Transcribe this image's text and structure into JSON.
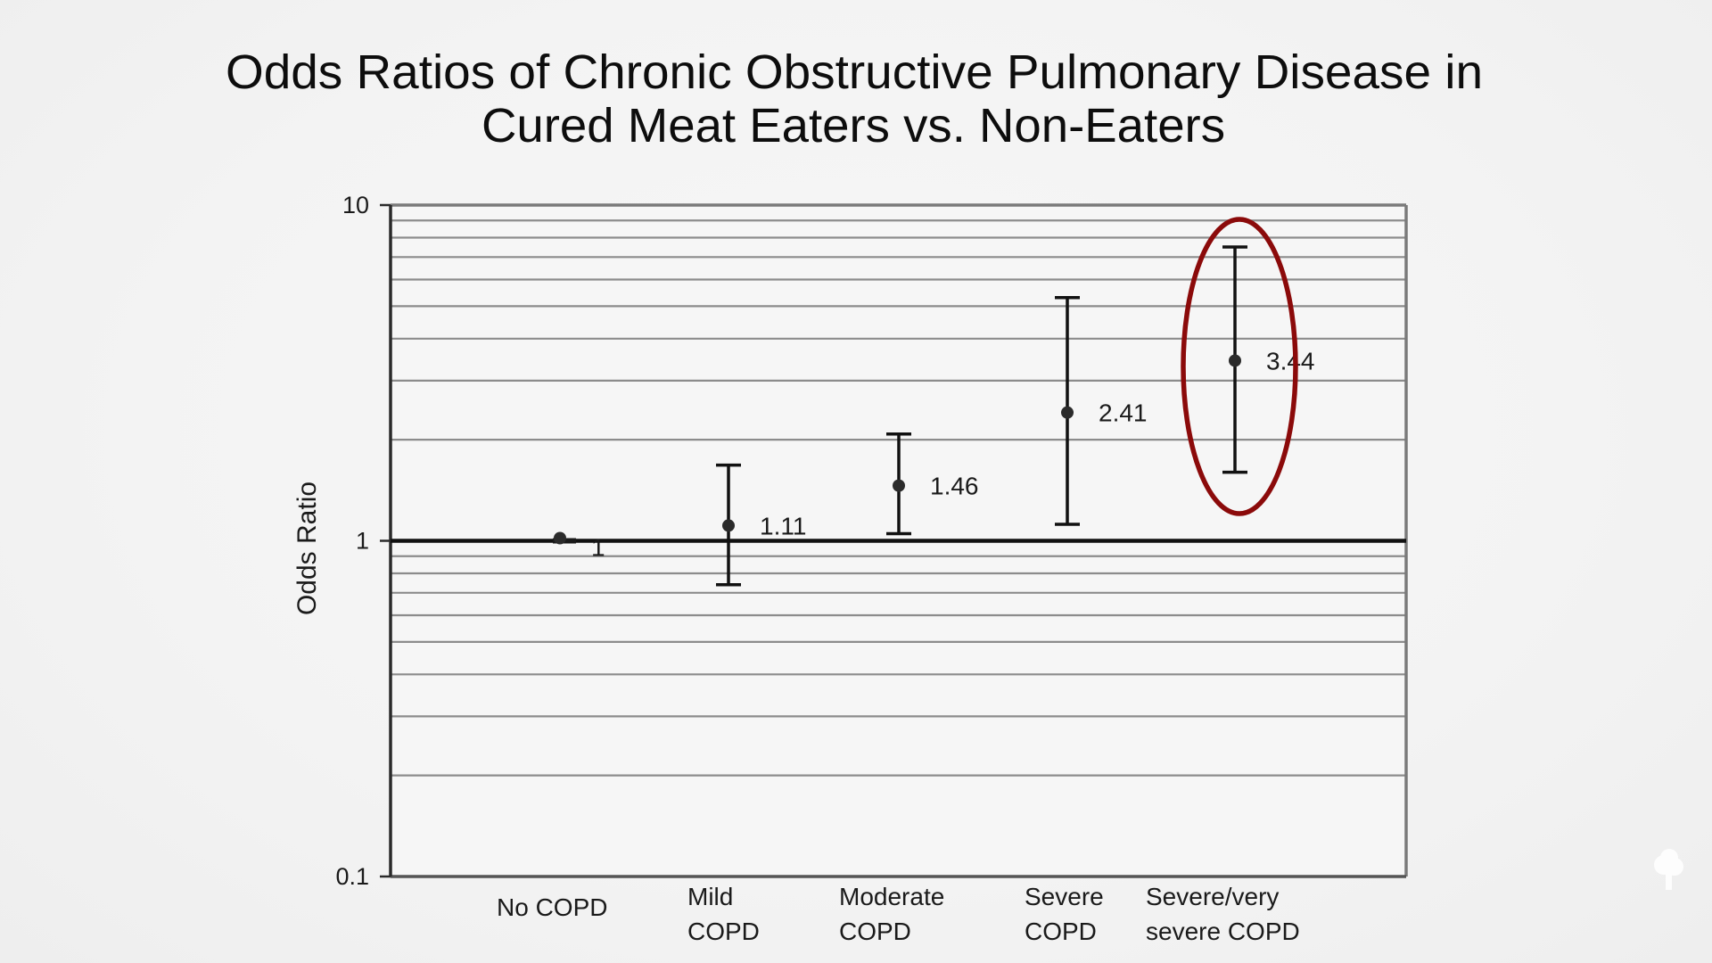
{
  "colors": {
    "background": "#f4f4f4",
    "text": "#111111",
    "axis": "#2a2a2a",
    "frame": "#7a7a7a",
    "gridline": "#8c8c8c",
    "reference_line": "#111111",
    "marker": "#2b2b2b",
    "highlight": "#8b0a0a",
    "watermark": "#ffffff"
  },
  "chart_data": {
    "type": "scatter",
    "subtype": "point-with-error-bars",
    "title_lines": [
      "Odds Ratios of Chronic Obstructive Pulmonary Disease in",
      "Cured Meat Eaters vs. Non-Eaters"
    ],
    "xlabel": "",
    "ylabel": "Odds Ratio",
    "yscale": "log",
    "ylim": [
      0.1,
      10
    ],
    "y_ticks": [
      {
        "value": 10,
        "label": "10"
      },
      {
        "value": 1,
        "label": "1"
      },
      {
        "value": 0.1,
        "label": "0.1"
      }
    ],
    "grid": true,
    "reference_line": 1,
    "categories": [
      {
        "lines": [
          "No COPD"
        ]
      },
      {
        "lines": [
          "Mild",
          "COPD"
        ]
      },
      {
        "lines": [
          "Moderate",
          "COPD"
        ]
      },
      {
        "lines": [
          "Severe",
          "COPD"
        ]
      },
      {
        "lines": [
          "Severe/very",
          "severe COPD"
        ]
      }
    ],
    "series": [
      {
        "name": "Odds Ratio",
        "values": [
          1,
          1.11,
          1.46,
          2.41,
          3.44
        ],
        "value_labels": [
          "1",
          "1.11",
          "1.46",
          "2.41",
          "3.44"
        ],
        "ci_lower": [
          0.96,
          0.74,
          1.05,
          1.12,
          1.6
        ],
        "ci_upper": [
          1.04,
          1.68,
          2.08,
          5.3,
          7.5
        ]
      }
    ],
    "annotations": [
      {
        "type": "ellipse",
        "target_category_index": 4,
        "color": "#8b0a0a"
      }
    ]
  },
  "watermark": {
    "icon": "broccoli-logo-icon"
  }
}
